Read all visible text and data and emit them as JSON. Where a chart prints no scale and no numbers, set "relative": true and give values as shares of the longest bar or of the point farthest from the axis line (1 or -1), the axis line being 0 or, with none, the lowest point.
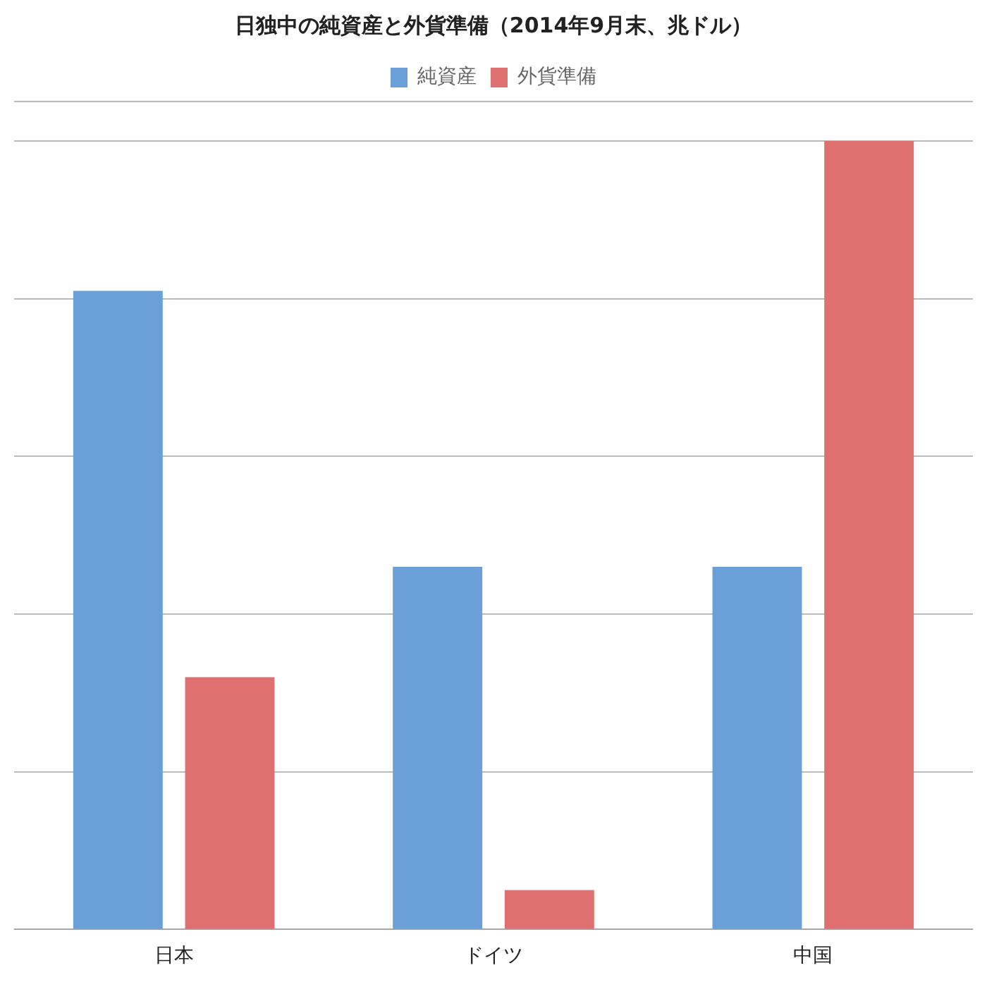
{
  "chart_data": {
    "type": "bar",
    "title": "日独中の純資産と外貨準備（2014年9月末、兆ドル）",
    "categories": [
      "日本",
      "ドイツ",
      "中国"
    ],
    "relative": true,
    "grid": "y",
    "legend": "top",
    "series": [
      {
        "name": "純資産",
        "color": "#6a9fd8",
        "values": [
          0.81,
          0.46,
          0.46
        ]
      },
      {
        "name": "外貨準備",
        "color": "#e07070",
        "values": [
          0.32,
          0.05,
          1
        ]
      }
    ]
  }
}
